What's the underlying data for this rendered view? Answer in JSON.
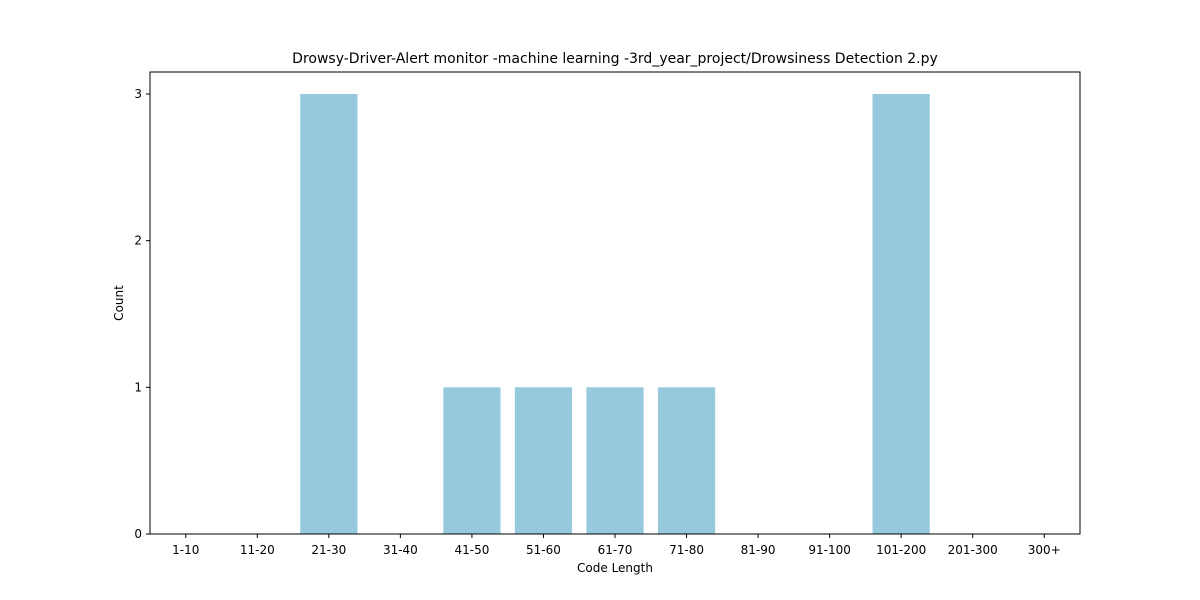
{
  "chart_data": {
    "type": "bar",
    "title": "Drowsy-Driver-Alert monitor -machine learning -3rd_year_project/Drowsiness Detection 2.py",
    "xlabel": "Code Length",
    "ylabel": "Count",
    "categories": [
      "1-10",
      "11-20",
      "21-30",
      "31-40",
      "41-50",
      "51-60",
      "61-70",
      "71-80",
      "81-90",
      "91-100",
      "101-200",
      "201-300",
      "300+"
    ],
    "values": [
      0,
      0,
      3,
      0,
      1,
      1,
      1,
      1,
      0,
      0,
      3,
      0,
      0
    ],
    "ylim": [
      0,
      3.15
    ],
    "yticks": [
      0,
      1,
      2,
      3
    ],
    "bar_color": "#96c9dd",
    "grid": false,
    "legend": "none"
  }
}
